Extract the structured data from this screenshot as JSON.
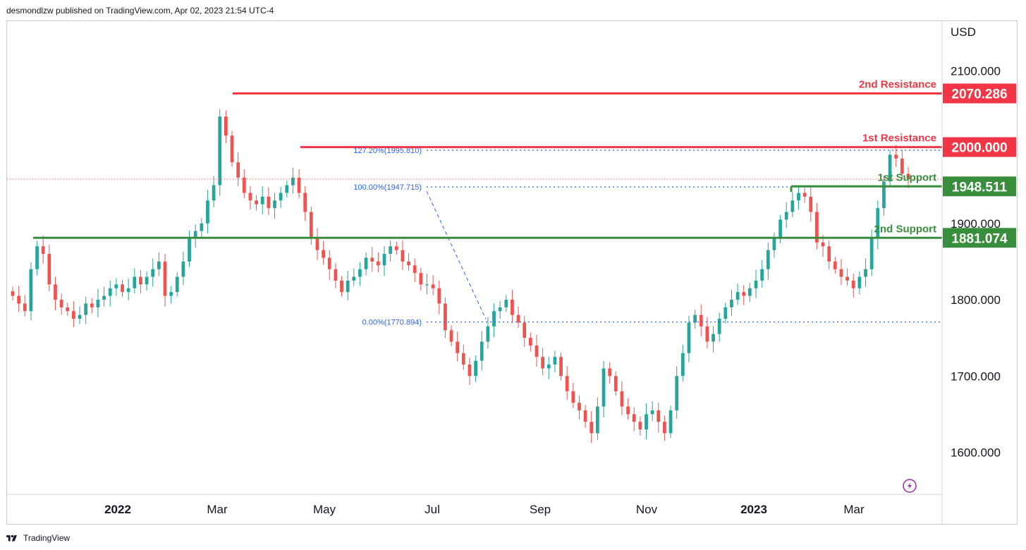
{
  "header": {
    "publisher_line": "desmondlzw published on TradingView.com, Apr 02, 2023 21:54 UTC-4"
  },
  "footer": {
    "brand": "TradingView"
  },
  "colors": {
    "resistance": "#f23645",
    "support": "#388e3c",
    "fib": "#2962ff",
    "candle_up": "#26a69a",
    "candle_down": "#ef5350",
    "axis_text": "#131722"
  },
  "chart_data": {
    "type": "candlestick",
    "currency_label": "USD",
    "x_labels": [
      "2022",
      "Mar",
      "May",
      "Jul",
      "Sep",
      "Nov",
      "2023",
      "Mar"
    ],
    "y_ticks": [
      "2100.000",
      "1900.000",
      "1800.000",
      "1700.000",
      "1600.000"
    ],
    "y_range": [
      1545,
      2165
    ],
    "levels": [
      {
        "label": "2nd Resistance",
        "value_text": "2070.286",
        "value": 2070.286,
        "kind": "resistance"
      },
      {
        "label": "1st Resistance",
        "value_text": "2000.000",
        "value": 2000.0,
        "kind": "resistance"
      },
      {
        "label": "1st Support",
        "value_text": "1948.511",
        "value": 1948.511,
        "kind": "support"
      },
      {
        "label": "2nd Support",
        "value_text": "1881.074",
        "value": 1881.074,
        "kind": "support"
      }
    ],
    "fibonacci": [
      {
        "label": "127.20%(1995.810)",
        "value": 1995.81
      },
      {
        "label": "100.00%(1947.715)",
        "value": 1947.715
      },
      {
        "label": "0.00%(1770.894)",
        "value": 1770.894
      }
    ],
    "current_price_approx": 1958,
    "series": [
      {
        "values": [
          1805,
          1795,
          1785,
          1840,
          1870,
          1860,
          1820,
          1800,
          1790,
          1785,
          1775,
          1780,
          1795,
          1790,
          1800,
          1805,
          1815,
          1820,
          1810,
          1815,
          1830,
          1820,
          1830,
          1840,
          1850,
          1805,
          1810,
          1830,
          1850,
          1880,
          1890,
          1900,
          1930,
          1950,
          2040,
          2015,
          1980,
          1960,
          1940,
          1930,
          1925,
          1935,
          1920,
          1930,
          1940,
          1950,
          1960,
          1940,
          1915,
          1880,
          1865,
          1855,
          1840,
          1825,
          1810,
          1825,
          1830,
          1840,
          1855,
          1850,
          1845,
          1860,
          1870,
          1865,
          1850,
          1845,
          1835,
          1820,
          1820,
          1815,
          1795,
          1760,
          1745,
          1730,
          1715,
          1700,
          1720,
          1745,
          1765,
          1785,
          1790,
          1800,
          1780,
          1770,
          1750,
          1740,
          1725,
          1710,
          1715,
          1725,
          1700,
          1680,
          1665,
          1655,
          1640,
          1625,
          1660,
          1710,
          1700,
          1680,
          1660,
          1650,
          1640,
          1630,
          1650,
          1655,
          1640,
          1625,
          1655,
          1700,
          1730,
          1770,
          1780,
          1765,
          1745,
          1755,
          1775,
          1790,
          1800,
          1810,
          1805,
          1815,
          1825,
          1840,
          1865,
          1880,
          1905,
          1915,
          1930,
          1940,
          1935,
          1915,
          1875,
          1870,
          1850,
          1840,
          1830,
          1825,
          1815,
          1830,
          1840,
          1880,
          1920,
          1955,
          1990,
          1985,
          1965,
          1958
        ]
      }
    ]
  }
}
